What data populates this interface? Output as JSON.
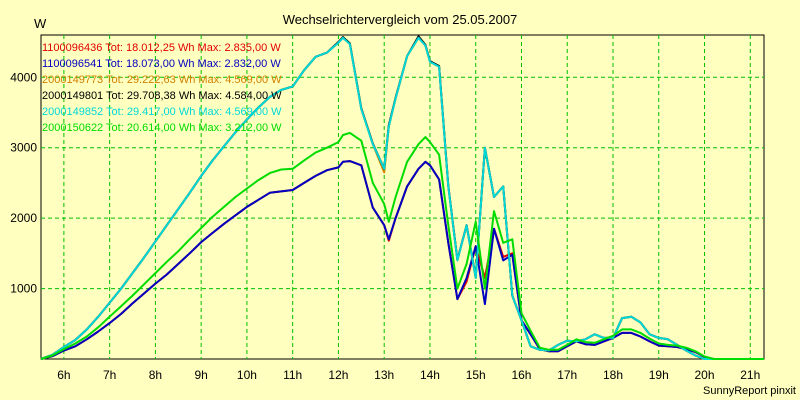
{
  "chart_data": {
    "type": "line",
    "title": "Wechselrichtervergleich vom 25.05.2007",
    "ylabel": "W",
    "xlabel": "",
    "credit": "SunnyReport pinxit",
    "xlim": [
      5.5,
      21.3
    ],
    "ylim": [
      0,
      4600
    ],
    "grid": true,
    "legend_position": "top-left",
    "x_ticks": [
      6,
      7,
      8,
      9,
      10,
      11,
      12,
      13,
      14,
      15,
      16,
      17,
      18,
      19,
      20,
      21
    ],
    "x_tick_labels": [
      "6h",
      "7h",
      "8h",
      "9h",
      "10h",
      "11h",
      "12h",
      "13h",
      "14h",
      "15h",
      "16h",
      "17h",
      "18h",
      "19h",
      "20h",
      "21h"
    ],
    "y_ticks": [
      1000,
      2000,
      3000,
      4000
    ],
    "y_tick_labels": [
      "1000",
      "2000",
      "3000",
      "4000"
    ],
    "x": [
      5.5,
      5.75,
      6.0,
      6.25,
      6.5,
      6.75,
      7.0,
      7.25,
      7.5,
      7.75,
      8.0,
      8.25,
      8.5,
      8.75,
      9.0,
      9.25,
      9.5,
      9.75,
      10.0,
      10.25,
      10.5,
      10.75,
      11.0,
      11.25,
      11.5,
      11.75,
      12.0,
      12.1,
      12.25,
      12.5,
      12.75,
      13.0,
      13.1,
      13.25,
      13.5,
      13.75,
      13.9,
      14.0,
      14.2,
      14.4,
      14.6,
      14.8,
      15.0,
      15.2,
      15.4,
      15.6,
      15.8,
      16.0,
      16.2,
      16.4,
      16.6,
      16.8,
      17.0,
      17.2,
      17.4,
      17.6,
      17.8,
      18.0,
      18.2,
      18.4,
      18.6,
      18.8,
      19.0,
      19.2,
      19.4,
      19.6,
      19.8,
      20.0,
      20.2,
      20.4,
      20.6,
      20.8,
      21.0,
      21.2,
      21.3
    ],
    "series": [
      {
        "name": "1100096436 Tot: 18.012,25 Wh Max: 2.835,00 W",
        "color": "#e00000",
        "values": [
          0,
          40,
          120,
          180,
          280,
          390,
          510,
          640,
          790,
          930,
          1070,
          1200,
          1350,
          1500,
          1660,
          1790,
          1920,
          2040,
          2160,
          2260,
          2360,
          2380,
          2400,
          2500,
          2600,
          2680,
          2720,
          2800,
          2810,
          2750,
          2150,
          1900,
          1680,
          2000,
          2450,
          2700,
          2800,
          2750,
          2550,
          1650,
          850,
          1100,
          1600,
          1150,
          1850,
          1450,
          1500,
          550,
          350,
          140,
          110,
          110,
          180,
          250,
          210,
          200,
          250,
          300,
          370,
          370,
          320,
          250,
          190,
          180,
          170,
          140,
          100,
          30,
          0,
          0,
          0,
          0,
          0,
          0,
          0
        ]
      },
      {
        "name": "1100096541 Tot: 18.073,00 Wh Max: 2.832,00 W",
        "color": "#0000c0",
        "values": [
          0,
          40,
          120,
          180,
          280,
          390,
          510,
          640,
          790,
          930,
          1070,
          1200,
          1350,
          1500,
          1660,
          1790,
          1920,
          2040,
          2160,
          2260,
          2360,
          2380,
          2400,
          2500,
          2600,
          2680,
          2720,
          2800,
          2810,
          2750,
          2150,
          1900,
          1700,
          2000,
          2450,
          2700,
          2800,
          2750,
          2550,
          1650,
          850,
          1150,
          1600,
          780,
          1850,
          1400,
          1480,
          550,
          350,
          140,
          110,
          110,
          180,
          250,
          210,
          200,
          250,
          300,
          370,
          370,
          320,
          250,
          190,
          180,
          170,
          140,
          100,
          30,
          0,
          0,
          0,
          0,
          0,
          0,
          0
        ]
      },
      {
        "name": "2000149773 Tot: 29.222,63 Wh Max: 4.569,00 W",
        "color": "#d08000",
        "values": [
          0,
          60,
          170,
          270,
          420,
          600,
          800,
          1000,
          1220,
          1440,
          1670,
          1900,
          2130,
          2360,
          2600,
          2820,
          3020,
          3220,
          3400,
          3570,
          3720,
          3820,
          3870,
          4100,
          4290,
          4350,
          4490,
          4560,
          4470,
          3550,
          3050,
          2650,
          3300,
          3700,
          4300,
          4560,
          4450,
          4220,
          4150,
          2450,
          1400,
          1900,
          1150,
          3000,
          2300,
          2450,
          900,
          550,
          180,
          130,
          120,
          200,
          260,
          250,
          280,
          350,
          300,
          300,
          580,
          600,
          520,
          350,
          300,
          280,
          200,
          120,
          50,
          0,
          0,
          0,
          0,
          0,
          0,
          0,
          0
        ]
      },
      {
        "name": "2000149801 Tot: 29.708,38 Wh Max: 4.584,00 W",
        "color": "#000000",
        "values": [
          0,
          60,
          170,
          270,
          420,
          600,
          800,
          1000,
          1220,
          1440,
          1670,
          1900,
          2130,
          2360,
          2600,
          2820,
          3020,
          3220,
          3400,
          3570,
          3720,
          3820,
          3870,
          4100,
          4290,
          4350,
          4500,
          4570,
          4480,
          3560,
          3060,
          2700,
          3320,
          3710,
          4300,
          4580,
          4460,
          4230,
          4160,
          2460,
          1410,
          1900,
          1160,
          3000,
          2300,
          2450,
          900,
          550,
          180,
          130,
          120,
          200,
          260,
          250,
          280,
          350,
          300,
          300,
          580,
          600,
          520,
          350,
          300,
          280,
          200,
          120,
          50,
          0,
          0,
          0,
          0,
          0,
          0,
          0,
          0
        ]
      },
      {
        "name": "2000149852 Tot: 29.417,00 Wh Max: 4.569,00 W",
        "color": "#00d8d8",
        "values": [
          0,
          60,
          170,
          270,
          420,
          600,
          800,
          1000,
          1220,
          1440,
          1670,
          1900,
          2130,
          2360,
          2600,
          2820,
          3020,
          3220,
          3400,
          3570,
          3720,
          3820,
          3870,
          4100,
          4290,
          4350,
          4490,
          4560,
          4470,
          3550,
          3050,
          2700,
          3300,
          3700,
          4300,
          4560,
          4450,
          4220,
          4150,
          2450,
          1400,
          1900,
          1150,
          3000,
          2300,
          2450,
          900,
          550,
          180,
          130,
          120,
          200,
          260,
          250,
          280,
          350,
          300,
          300,
          580,
          600,
          520,
          350,
          300,
          280,
          200,
          120,
          50,
          0,
          0,
          0,
          0,
          0,
          0,
          0,
          0
        ]
      },
      {
        "name": "2000150622 Tot: 20.614,00 Wh Max: 3.212,00 W",
        "color": "#00dc00",
        "values": [
          0,
          50,
          140,
          220,
          320,
          450,
          600,
          750,
          900,
          1060,
          1220,
          1380,
          1530,
          1700,
          1860,
          2020,
          2160,
          2300,
          2420,
          2540,
          2640,
          2690,
          2700,
          2820,
          2930,
          3000,
          3080,
          3180,
          3210,
          3100,
          2500,
          2200,
          1950,
          2300,
          2800,
          3050,
          3150,
          3080,
          2900,
          1900,
          1000,
          1350,
          1950,
          1000,
          2100,
          1650,
          1700,
          650,
          400,
          160,
          130,
          130,
          200,
          280,
          240,
          230,
          280,
          330,
          420,
          420,
          370,
          290,
          220,
          200,
          190,
          160,
          110,
          35,
          0,
          0,
          0,
          0,
          0,
          0,
          0
        ]
      }
    ]
  }
}
